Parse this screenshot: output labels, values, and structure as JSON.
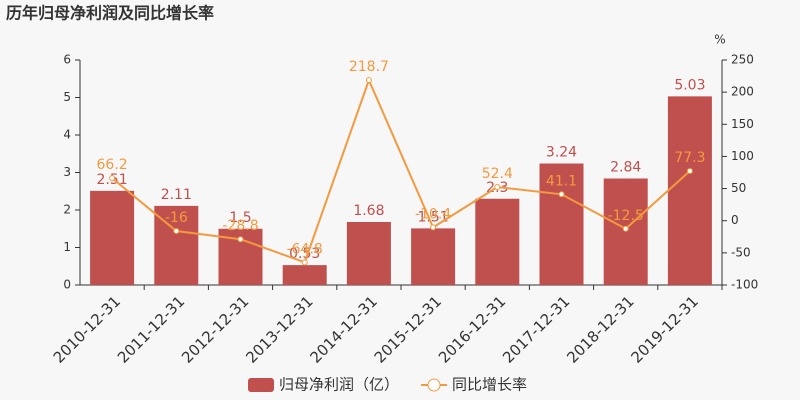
{
  "chart_data": {
    "type": "combo",
    "title": "历年归母净利润及同比增长率",
    "categories": [
      "2010-12-31",
      "2011-12-31",
      "2012-12-31",
      "2013-12-31",
      "2014-12-31",
      "2015-12-31",
      "2016-12-31",
      "2017-12-31",
      "2018-12-31",
      "2019-12-31"
    ],
    "series": [
      {
        "name": "归母净利润（亿）",
        "type": "bar",
        "color": "#c0504d",
        "values": [
          2.51,
          2.11,
          1.5,
          0.53,
          1.68,
          1.51,
          2.3,
          3.24,
          2.84,
          5.03
        ]
      },
      {
        "name": "同比增长率",
        "type": "line",
        "axis": "y2",
        "color": "#f39a3f",
        "values": [
          66.2,
          -16,
          -28.8,
          -64.8,
          218.7,
          -10.4,
          52.4,
          41.1,
          -12.5,
          77.3
        ]
      }
    ],
    "ylim": [
      0,
      6
    ],
    "yticks": [
      0,
      1,
      2,
      3,
      4,
      5,
      6
    ],
    "y2lim": [
      -100,
      250
    ],
    "y2ticks": [
      -100,
      -50,
      0,
      50,
      100,
      150,
      200,
      250
    ],
    "y2_unit": "%",
    "legend": "bottom"
  }
}
